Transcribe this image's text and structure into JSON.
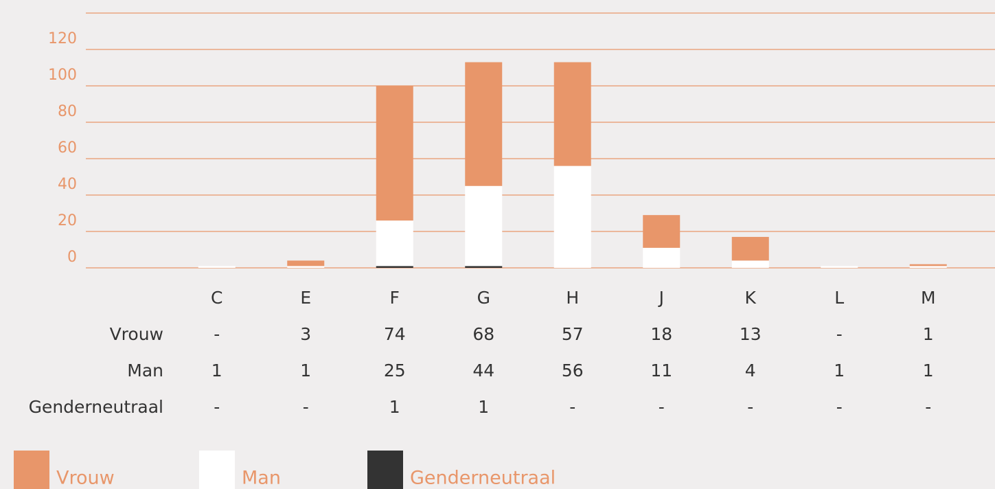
{
  "chart_data": {
    "type": "bar",
    "stacked": true,
    "categories": [
      "C",
      "E",
      "F",
      "G",
      "H",
      "J",
      "K",
      "L",
      "M"
    ],
    "series": [
      {
        "name": "Vrouw",
        "color": "#e8966a",
        "values": [
          null,
          3,
          74,
          68,
          57,
          18,
          13,
          null,
          1
        ],
        "value_labels": [
          "-",
          "3",
          "74",
          "68",
          "57",
          "18",
          "13",
          "-",
          "1"
        ]
      },
      {
        "name": "Man",
        "color": "#ffffff",
        "values": [
          1,
          1,
          25,
          44,
          56,
          11,
          4,
          1,
          1
        ],
        "value_labels": [
          "1",
          "1",
          "25",
          "44",
          "56",
          "11",
          "4",
          "1",
          "1"
        ]
      },
      {
        "name": "Genderneutraal",
        "color": "#333333",
        "values": [
          null,
          null,
          1,
          1,
          null,
          null,
          null,
          null,
          null
        ],
        "value_labels": [
          "-",
          "-",
          "1",
          "1",
          "-",
          "-",
          "-",
          "-",
          "-"
        ]
      }
    ],
    "ylim": [
      0,
      140
    ],
    "yticks": [
      0,
      20,
      40,
      60,
      80,
      100,
      120
    ],
    "grid": true,
    "grid_color": "#e8966a"
  }
}
